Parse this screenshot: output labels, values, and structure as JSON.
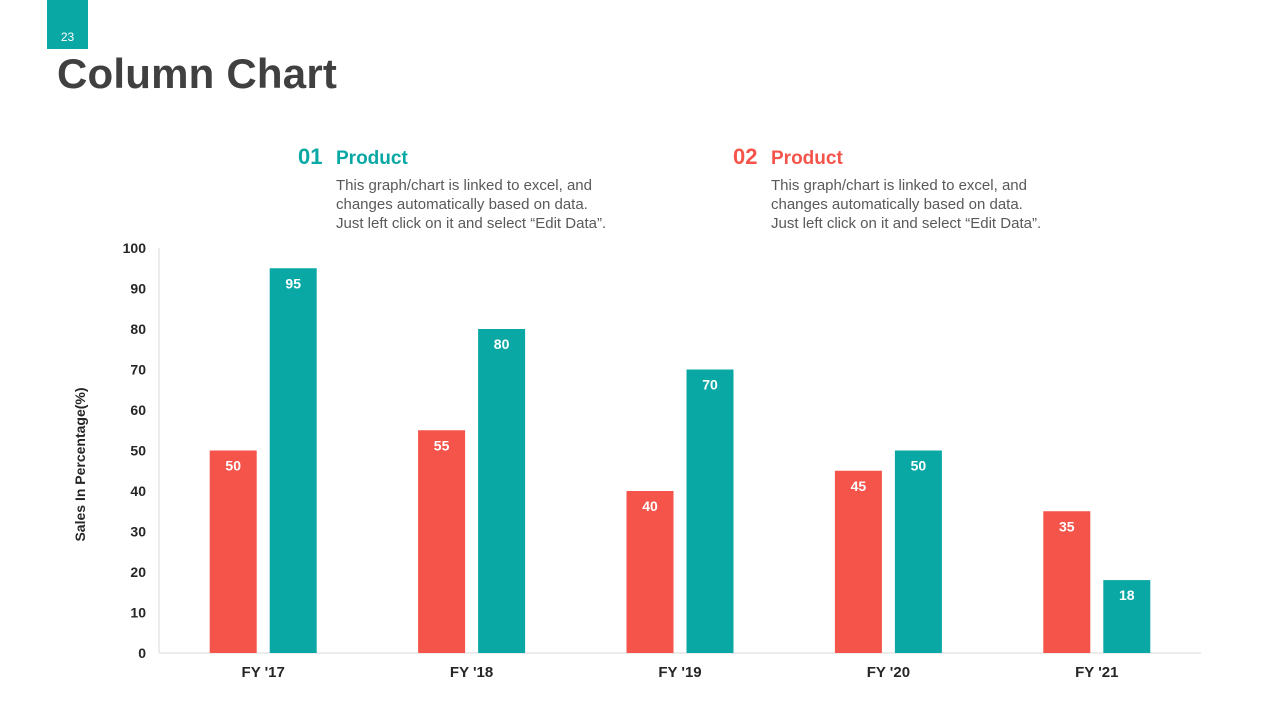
{
  "page": {
    "number": "23",
    "title": "Column Chart"
  },
  "legend": [
    {
      "number": "01",
      "name": "Product",
      "lines": [
        "This graph/chart is linked to excel, and",
        "changes automatically based on data.",
        "Just left click on it and select “Edit Data”."
      ],
      "color": "#0aa8a5"
    },
    {
      "number": "02",
      "name": "Product",
      "lines": [
        "This graph/chart is linked to excel, and",
        "changes automatically based on data.",
        "Just left click on it and select “Edit Data”."
      ],
      "color": "#f4544a"
    }
  ],
  "chart_data": {
    "type": "bar",
    "title": "Column Chart",
    "categories": [
      "FY '17",
      "FY '18",
      "FY '19",
      "FY '20",
      "FY '21"
    ],
    "series": [
      {
        "name": "Product 02",
        "color": "#f4544a",
        "values": [
          50,
          55,
          40,
          45,
          35
        ]
      },
      {
        "name": "Product 01",
        "color": "#0aa8a5",
        "values": [
          95,
          80,
          70,
          50,
          18
        ]
      }
    ],
    "xlabel": "",
    "ylabel": "Sales In Percentage(%)",
    "ylim": [
      0,
      100
    ],
    "yticks": [
      0,
      10,
      20,
      30,
      40,
      50,
      60,
      70,
      80,
      90,
      100
    ],
    "grid": false,
    "data_labels": true
  }
}
